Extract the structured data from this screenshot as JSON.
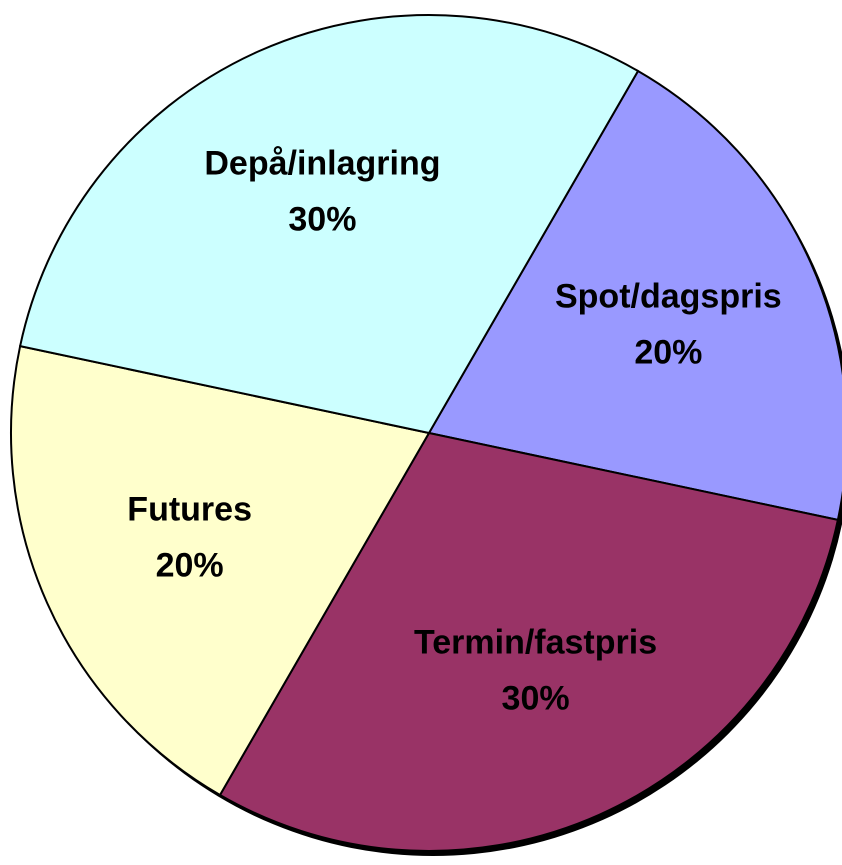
{
  "chart_data": {
    "type": "pie",
    "categories": [
      "Spot/dagspris",
      "Termin/fastpris",
      "Futures",
      "Depå/inlagring"
    ],
    "values": [
      20,
      30,
      20,
      30
    ],
    "value_labels": [
      "20%",
      "30%",
      "20%",
      "30%"
    ],
    "colors": [
      "#9999ff",
      "#993366",
      "#ffffcc",
      "#ccffff"
    ]
  }
}
